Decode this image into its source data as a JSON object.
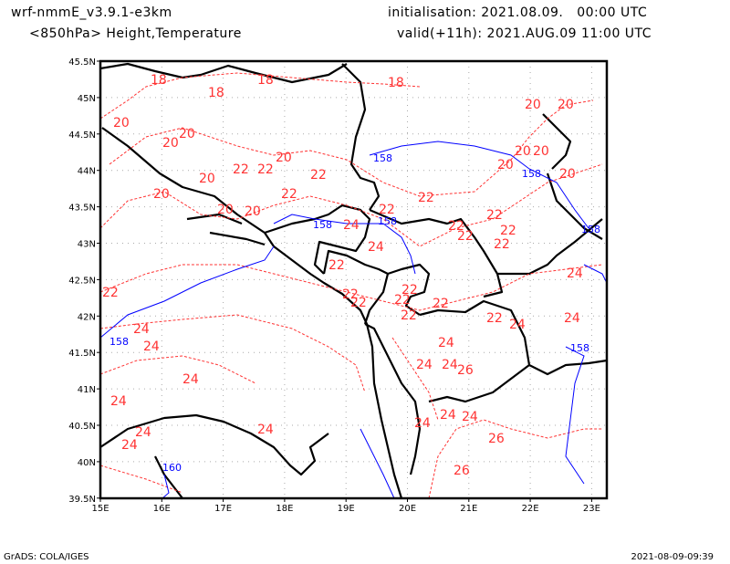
{
  "header": {
    "model": "wrf-nmmE_v3.9.1-e3km",
    "field": "<850hPa> Height,Temperature",
    "init": "initialisation: 2021.08.09.   00:00 UTC",
    "valid": "valid(+11h): 2021.AUG.09 11:00 UTC"
  },
  "footer": {
    "credit": "GrADS: COLA/IGES",
    "timestamp": "2021-08-09-09:39"
  },
  "map": {
    "lon_labels": [
      "15E",
      "16E",
      "17E",
      "18E",
      "19E",
      "20E",
      "21E",
      "22E",
      "23E"
    ],
    "lat_labels": [
      "45.5N",
      "45N",
      "44.5N",
      "44N",
      "43.5N",
      "43N",
      "42.5N",
      "42N",
      "41.5N",
      "41N",
      "40.5N",
      "40N",
      "39.5N"
    ],
    "colors": {
      "temperature": "#ff3333",
      "height": "#0000ff",
      "borders": "#000000",
      "grid": "#aaaaaa"
    },
    "temperature_labels": [
      "18",
      "18",
      "18",
      "18",
      "20",
      "20",
      "20",
      "20",
      "20",
      "20",
      "20",
      "20",
      "20",
      "20",
      "20",
      "20",
      "20",
      "20",
      "22",
      "22",
      "22",
      "22",
      "22",
      "22",
      "22",
      "22",
      "22",
      "22",
      "22",
      "22",
      "22",
      "22",
      "22",
      "22",
      "22",
      "22",
      "22",
      "22",
      "24",
      "24",
      "24",
      "24",
      "24",
      "24",
      "24",
      "24",
      "24",
      "24",
      "24",
      "24",
      "24",
      "24",
      "24",
      "24",
      "24",
      "24",
      "26",
      "26",
      "26"
    ],
    "height_labels": [
      "158",
      "158",
      "158",
      "158",
      "158",
      "158",
      "158",
      "160"
    ]
  }
}
